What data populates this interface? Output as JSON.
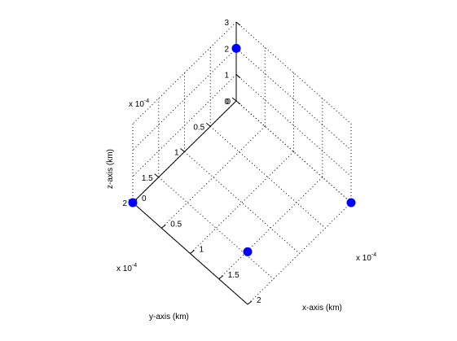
{
  "chart_data": {
    "type": "scatter",
    "projection": "3d",
    "xlabel": "x-axis (km)",
    "ylabel": "y-axis (km)",
    "zlabel": "z-axis (km)",
    "x_exponent_label": "x 10",
    "y_exponent_label": "x 10",
    "z_exponent_label": "x 10",
    "x_exponent": "-4",
    "y_exponent": "-4",
    "z_exponent": "-4",
    "xlim": [
      0,
      2
    ],
    "ylim": [
      0,
      2
    ],
    "zlim": [
      0,
      3
    ],
    "x_ticks": [
      "0",
      "0.5",
      "1",
      "1.5",
      "2"
    ],
    "y_ticks": [
      "0",
      "0.5",
      "1",
      "1.5",
      "2"
    ],
    "z_ticks": [
      "0",
      "1",
      "2",
      "3"
    ],
    "grid": true,
    "marker_color": "#0000ff",
    "points": [
      {
        "x": 0,
        "y": 0,
        "z": 2
      },
      {
        "x": 2,
        "y": 2,
        "z": 2
      },
      {
        "x": 2,
        "y": 0,
        "z": 0
      },
      {
        "x": 0,
        "y": 2,
        "z": 0
      }
    ]
  }
}
